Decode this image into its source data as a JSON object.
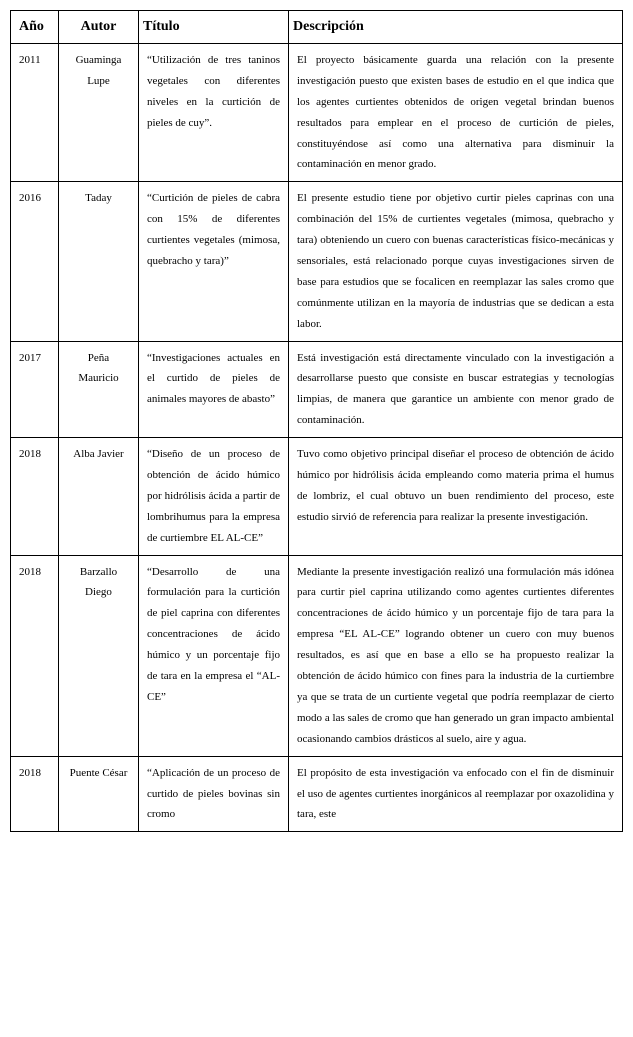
{
  "table": {
    "headers": {
      "year": "Año",
      "author": "Autor",
      "title": "Título",
      "description": "Descripción"
    },
    "rows": [
      {
        "year": "2011",
        "author": "Guaminga Lupe",
        "title": "“Utilización de tres taninos vegetales con diferentes niveles en la curtición de pieles de cuy”.",
        "description": "El proyecto básicamente guarda una relación con la presente investigación puesto que existen bases de estudio en el que indica que los agentes curtientes obtenidos de origen vegetal brindan buenos resultados para emplear en el proceso de curtición de pieles, constituyéndose así como una alternativa para disminuir la contaminación en menor grado."
      },
      {
        "year": "2016",
        "author": "Taday",
        "title": "“Curtición de pieles de cabra con 15% de diferentes curtientes vegetales (mimosa, quebracho y tara)”",
        "description": "El presente estudio tiene por objetivo curtir pieles caprinas con una combinación del 15% de curtientes vegetales (mimosa, quebracho y tara) obteniendo un cuero con buenas características físico-mecánicas y sensoriales, está relacionado porque cuyas investigaciones sirven de base para estudios que se focalicen en reemplazar las sales cromo que comúnmente utilizan en la mayoría de industrias que se dedican a esta labor."
      },
      {
        "year": "2017",
        "author": "Peña Mauricio",
        "title": "“Investigaciones actuales en el curtido de pieles de animales mayores de abasto”",
        "description": "Está investigación está directamente vinculado con la investigación a desarrollarse puesto que consiste en buscar estrategias y tecnologías limpias, de manera que garantice un ambiente con menor grado de contaminación."
      },
      {
        "year": "2018",
        "author": "Alba Javier",
        "title": "“Diseño de un proceso de obtención de ácido húmico por hidrólisis ácida a partir de lombrihumus para la empresa de curtiembre EL AL-CE”",
        "description": "Tuvo como objetivo principal diseñar el proceso de obtención de ácido húmico por hidrólisis ácida empleando como materia prima el humus de lombriz, el cual obtuvo un buen rendimiento del proceso, este estudio sirvió de referencia para realizar la presente investigación."
      },
      {
        "year": "2018",
        "author": "Barzallo Diego",
        "title": "“Desarrollo de una formulación para la curtición de piel caprina con diferentes concentraciones de ácido húmico y un porcentaje fijo de tara en la empresa el “AL-CE”",
        "description": "Mediante la presente investigación realizó una formulación más idónea para curtir piel caprina utilizando como agentes curtientes diferentes concentraciones de ácido húmico y un porcentaje fijo de tara para la empresa “EL AL-CE” logrando obtener un cuero con muy buenos resultados, es así que en base a ello se ha propuesto realizar la obtención de ácido húmico con fines para la industria de la curtiembre ya que se trata de un curtiente vegetal que podría reemplazar de cierto modo a las sales de cromo que han generado un gran impacto ambiental ocasionando cambios drásticos al suelo, aire y agua."
      },
      {
        "year": "2018",
        "author": "Puente César",
        "title": "“Aplicación de un proceso de curtido de pieles bovinas sin cromo",
        "description": "El propósito de esta investigación va enfocado con el fin de disminuir el uso de agentes curtientes inorgánicos al reemplazar por oxazolidina y tara, este"
      }
    ]
  }
}
